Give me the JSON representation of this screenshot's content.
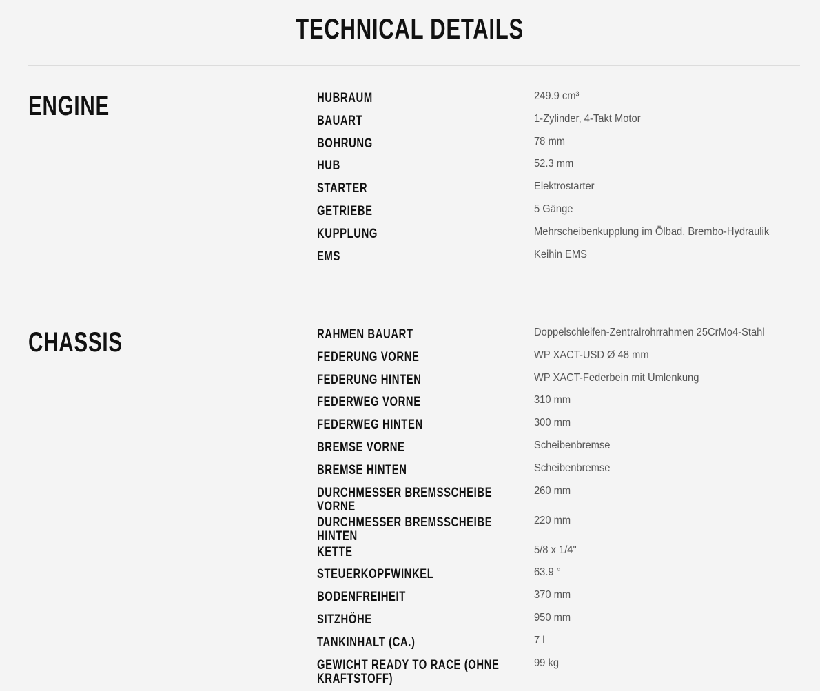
{
  "title": "TECHNICAL DETAILS",
  "sections": [
    {
      "heading": "ENGINE",
      "rows": [
        {
          "label": "HUBRAUM",
          "value": "249.9 cm³"
        },
        {
          "label": "BAUART",
          "value": "1-Zylinder, 4-Takt Motor"
        },
        {
          "label": "BOHRUNG",
          "value": "78 mm"
        },
        {
          "label": "HUB",
          "value": "52.3 mm"
        },
        {
          "label": "STARTER",
          "value": "Elektrostarter"
        },
        {
          "label": "GETRIEBE",
          "value": "5 Gänge"
        },
        {
          "label": "KUPPLUNG",
          "value": "Mehrscheibenkupplung im Ölbad, Brembo-Hydraulik"
        },
        {
          "label": "EMS",
          "value": "Keihin EMS"
        }
      ]
    },
    {
      "heading": "CHASSIS",
      "rows": [
        {
          "label": "RAHMEN BAUART",
          "value": "Doppelschleifen-Zentralrohrrahmen 25CrMo4-Stahl"
        },
        {
          "label": "FEDERUNG VORNE",
          "value": "WP XACT-USD Ø 48 mm"
        },
        {
          "label": "FEDERUNG HINTEN",
          "value": "WP XACT-Federbein mit Umlenkung"
        },
        {
          "label": "FEDERWEG VORNE",
          "value": "310 mm"
        },
        {
          "label": "FEDERWEG HINTEN",
          "value": "300 mm"
        },
        {
          "label": "BREMSE VORNE",
          "value": "Scheibenbremse"
        },
        {
          "label": "BREMSE HINTEN",
          "value": "Scheibenbremse"
        },
        {
          "label": "DURCHMESSER BREMSSCHEIBE VORNE",
          "value": "260 mm"
        },
        {
          "label": "DURCHMESSER BREMSSCHEIBE HINTEN",
          "value": "220 mm"
        },
        {
          "label": "KETTE",
          "value": "5/8 x 1/4\""
        },
        {
          "label": "STEUERKOPFWINKEL",
          "value": "63.9 °"
        },
        {
          "label": "BODENFREIHEIT",
          "value": "370 mm"
        },
        {
          "label": "SITZHÖHE",
          "value": "950 mm"
        },
        {
          "label": "TANKINHALT (CA.)",
          "value": "7 l"
        },
        {
          "label": "GEWICHT READY TO RACE (OHNE KRAFTSTOFF)",
          "value": "99 kg"
        }
      ]
    }
  ]
}
